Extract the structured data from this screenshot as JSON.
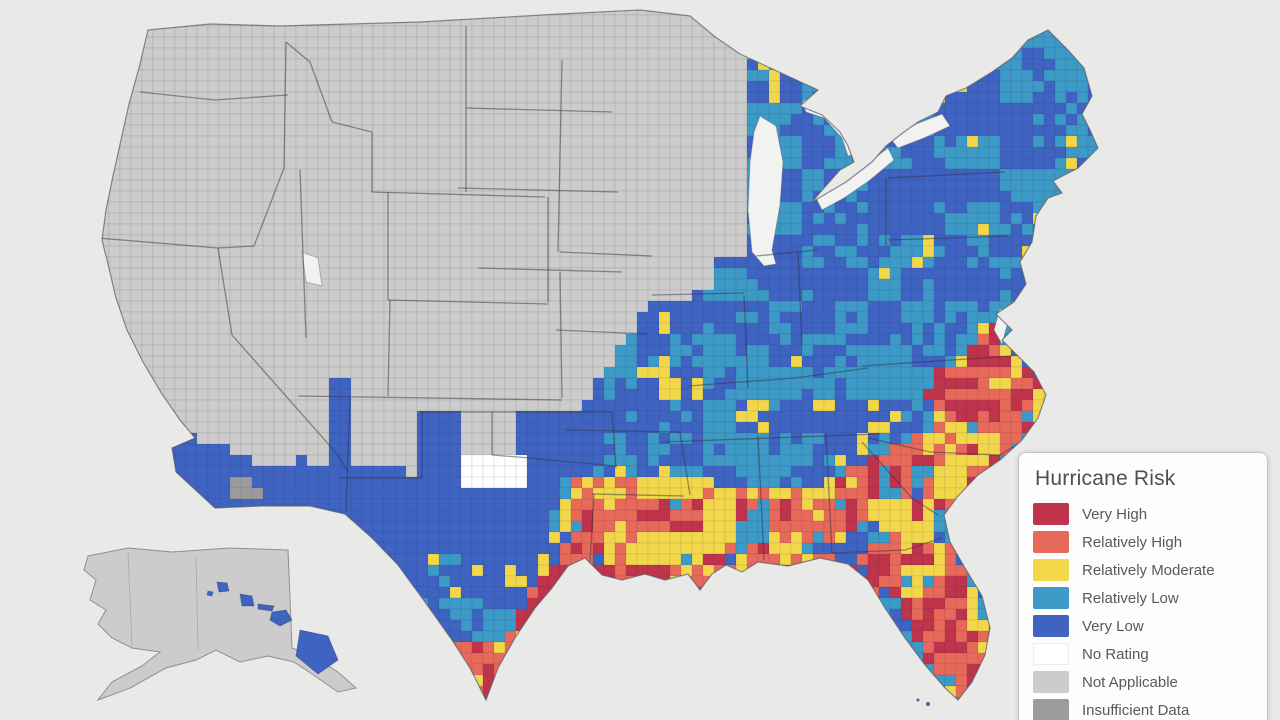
{
  "legend": {
    "title": "Hurricane Risk",
    "items": [
      {
        "key": "VH",
        "label": "Very High",
        "color": "#c0344b"
      },
      {
        "key": "RH",
        "label": "Relatively High",
        "color": "#e7695a"
      },
      {
        "key": "RM",
        "label": "Relatively Moderate",
        "color": "#f3d74b"
      },
      {
        "key": "RL",
        "label": "Relatively Low",
        "color": "#3d99c5"
      },
      {
        "key": "VL",
        "label": "Very Low",
        "color": "#3f63c1"
      },
      {
        "key": "NR",
        "label": "No Rating",
        "color": "#ffffff"
      },
      {
        "key": "NA",
        "label": "Not Applicable",
        "color": "#cccccc"
      },
      {
        "key": "ID",
        "label": "Insufficient Data",
        "color": "#9b9b9b"
      }
    ]
  },
  "map": {
    "kind": "county-level choropleth of the United States",
    "background_color": "#e9e9e8",
    "water_color": "#f2f2f0",
    "state_border_color": "#34343f",
    "coast_border_color": "#5a5a66"
  }
}
